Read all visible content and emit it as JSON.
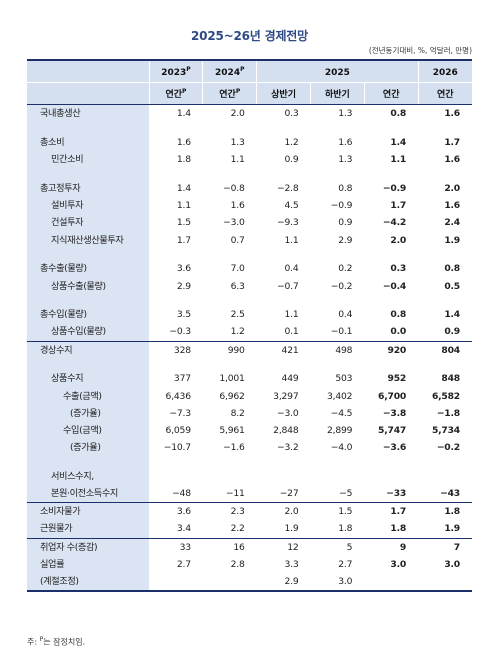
{
  "title": "2025~26년 경제전망",
  "unit_note": "(전년동기대비, %, 억달러, 만명)",
  "header": {
    "years": [
      {
        "label": "2023",
        "sup": "P"
      },
      {
        "label": "2024",
        "sup": "P"
      },
      {
        "label": "2025",
        "sup": ""
      },
      {
        "label": "2026",
        "sup": ""
      }
    ],
    "periods": [
      {
        "label": "연간",
        "sup": "P"
      },
      {
        "label": "연간",
        "sup": "P"
      },
      {
        "label": "상반기",
        "sup": ""
      },
      {
        "label": "하반기",
        "sup": ""
      },
      {
        "label": "연간",
        "sup": ""
      },
      {
        "label": "연간",
        "sup": ""
      }
    ]
  },
  "rows": [
    {
      "label": "국내총생산",
      "level": 0,
      "values": [
        "1.4",
        "2.0",
        "0.3",
        "1.3",
        "0.8",
        "1.6"
      ]
    },
    {
      "spacer": true
    },
    {
      "label": "총소비",
      "level": 0,
      "values": [
        "1.6",
        "1.3",
        "1.2",
        "1.6",
        "1.4",
        "1.7"
      ]
    },
    {
      "label": "민간소비",
      "level": 1,
      "values": [
        "1.8",
        "1.1",
        "0.9",
        "1.3",
        "1.1",
        "1.6"
      ]
    },
    {
      "spacer": true
    },
    {
      "label": "총고정투자",
      "level": 0,
      "values": [
        "1.4",
        "−0.8",
        "−2.8",
        "0.8",
        "−0.9",
        "2.0"
      ]
    },
    {
      "label": "설비투자",
      "level": 1,
      "values": [
        "1.1",
        "1.6",
        "4.5",
        "−0.9",
        "1.7",
        "1.6"
      ]
    },
    {
      "label": "건설투자",
      "level": 1,
      "values": [
        "1.5",
        "−3.0",
        "−9.3",
        "0.9",
        "−4.2",
        "2.4"
      ]
    },
    {
      "label": "지식재산생산물투자",
      "level": 1,
      "values": [
        "1.7",
        "0.7",
        "1.1",
        "2.9",
        "2.0",
        "1.9"
      ]
    },
    {
      "spacer": true
    },
    {
      "label": "총수출(물량)",
      "level": 0,
      "values": [
        "3.6",
        "7.0",
        "0.4",
        "0.2",
        "0.3",
        "0.8"
      ]
    },
    {
      "label": "상품수출(물량)",
      "level": 1,
      "values": [
        "2.9",
        "6.3",
        "−0.7",
        "−0.2",
        "−0.4",
        "0.5"
      ]
    },
    {
      "spacer": true
    },
    {
      "label": "총수입(물량)",
      "level": 0,
      "values": [
        "3.5",
        "2.5",
        "1.1",
        "0.4",
        "0.8",
        "1.4"
      ]
    },
    {
      "label": "상품수입(물량)",
      "level": 1,
      "values": [
        "−0.3",
        "1.2",
        "0.1",
        "−0.1",
        "0.0",
        "0.9"
      ]
    },
    {
      "label": "경상수지",
      "level": 0,
      "sep": true,
      "values": [
        "328",
        "990",
        "421",
        "498",
        "920",
        "804"
      ]
    },
    {
      "spacer": true
    },
    {
      "label": "상품수지",
      "level": 1,
      "values": [
        "377",
        "1,001",
        "449",
        "503",
        "952",
        "848"
      ]
    },
    {
      "label": "수출(금액)",
      "level": 2,
      "values": [
        "6,436",
        "6,962",
        "3,297",
        "3,402",
        "6,700",
        "6,582"
      ]
    },
    {
      "label": "(증가율)",
      "level": 3,
      "values": [
        "−7.3",
        "8.2",
        "−3.0",
        "−4.5",
        "−3.8",
        "−1.8"
      ]
    },
    {
      "label": "수입(금액)",
      "level": 2,
      "values": [
        "6,059",
        "5,961",
        "2,848",
        "2,899",
        "5,747",
        "5,734"
      ]
    },
    {
      "label": "(증가율)",
      "level": 3,
      "values": [
        "−10.7",
        "−1.6",
        "−3.2",
        "−4.0",
        "−3.6",
        "−0.2"
      ]
    },
    {
      "spacer": true
    },
    {
      "label": "서비스수지,",
      "level": 1,
      "values": [
        "",
        "",
        "",
        "",
        "",
        ""
      ]
    },
    {
      "label": "본원·이전소득수지",
      "level": 1,
      "values": [
        "−48",
        "−11",
        "−27",
        "−5",
        "−33",
        "−43"
      ]
    },
    {
      "label": "소비자물가",
      "level": 0,
      "sep": true,
      "values": [
        "3.6",
        "2.3",
        "2.0",
        "1.5",
        "1.7",
        "1.8"
      ]
    },
    {
      "label": "근원물가",
      "level": 0,
      "values": [
        "3.4",
        "2.2",
        "1.9",
        "1.8",
        "1.8",
        "1.9"
      ]
    },
    {
      "label": "취업자 수(증감)",
      "level": 0,
      "sep": true,
      "values": [
        "33",
        "16",
        "12",
        "5",
        "9",
        "7"
      ]
    },
    {
      "label": "실업률",
      "level": 0,
      "values": [
        "2.7",
        "2.8",
        "3.3",
        "2.7",
        "3.0",
        "3.0"
      ]
    },
    {
      "label": "(계절조정)",
      "level": 0,
      "last": true,
      "values": [
        "",
        "",
        "2.9",
        "3.0",
        "",
        ""
      ]
    }
  ],
  "footnote": {
    "prefix": "주: ",
    "sup": "P",
    "text": "는 잠정치임."
  }
}
